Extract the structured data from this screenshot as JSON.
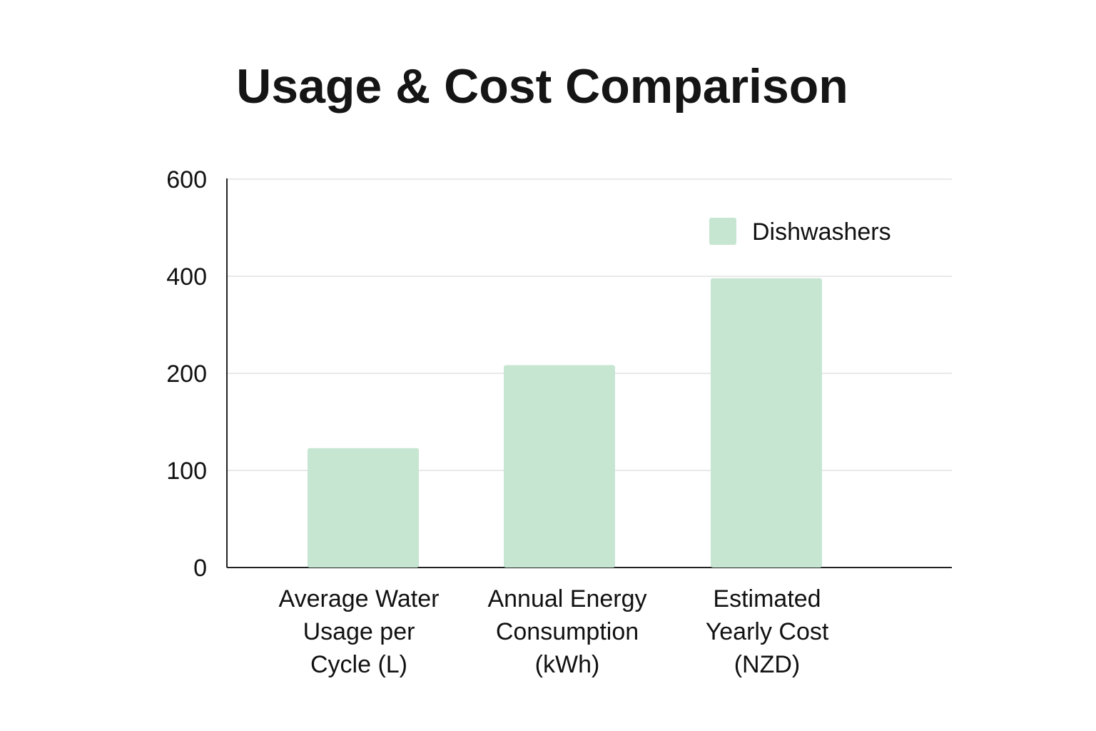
{
  "chart_data": {
    "type": "bar",
    "title": "Usage & Cost Comparison",
    "categories": [
      [
        "Average Water",
        "Usage per",
        "Cycle (L)"
      ],
      [
        "Annual Energy",
        "Consumption",
        "(kWh)"
      ],
      [
        "Estimated",
        "Yearly Cost",
        "(NZD)"
      ]
    ],
    "series": [
      {
        "name": "Dishwashers",
        "values": [
          123,
          217,
          396
        ],
        "color": "#c6e6d2"
      }
    ],
    "yticks": [
      0,
      100,
      200,
      400,
      600
    ],
    "ylim": [
      0,
      600
    ],
    "grid": true,
    "legend": "top-right",
    "colors": {
      "grid": "#e2e2e2",
      "axis": "#222222"
    }
  }
}
